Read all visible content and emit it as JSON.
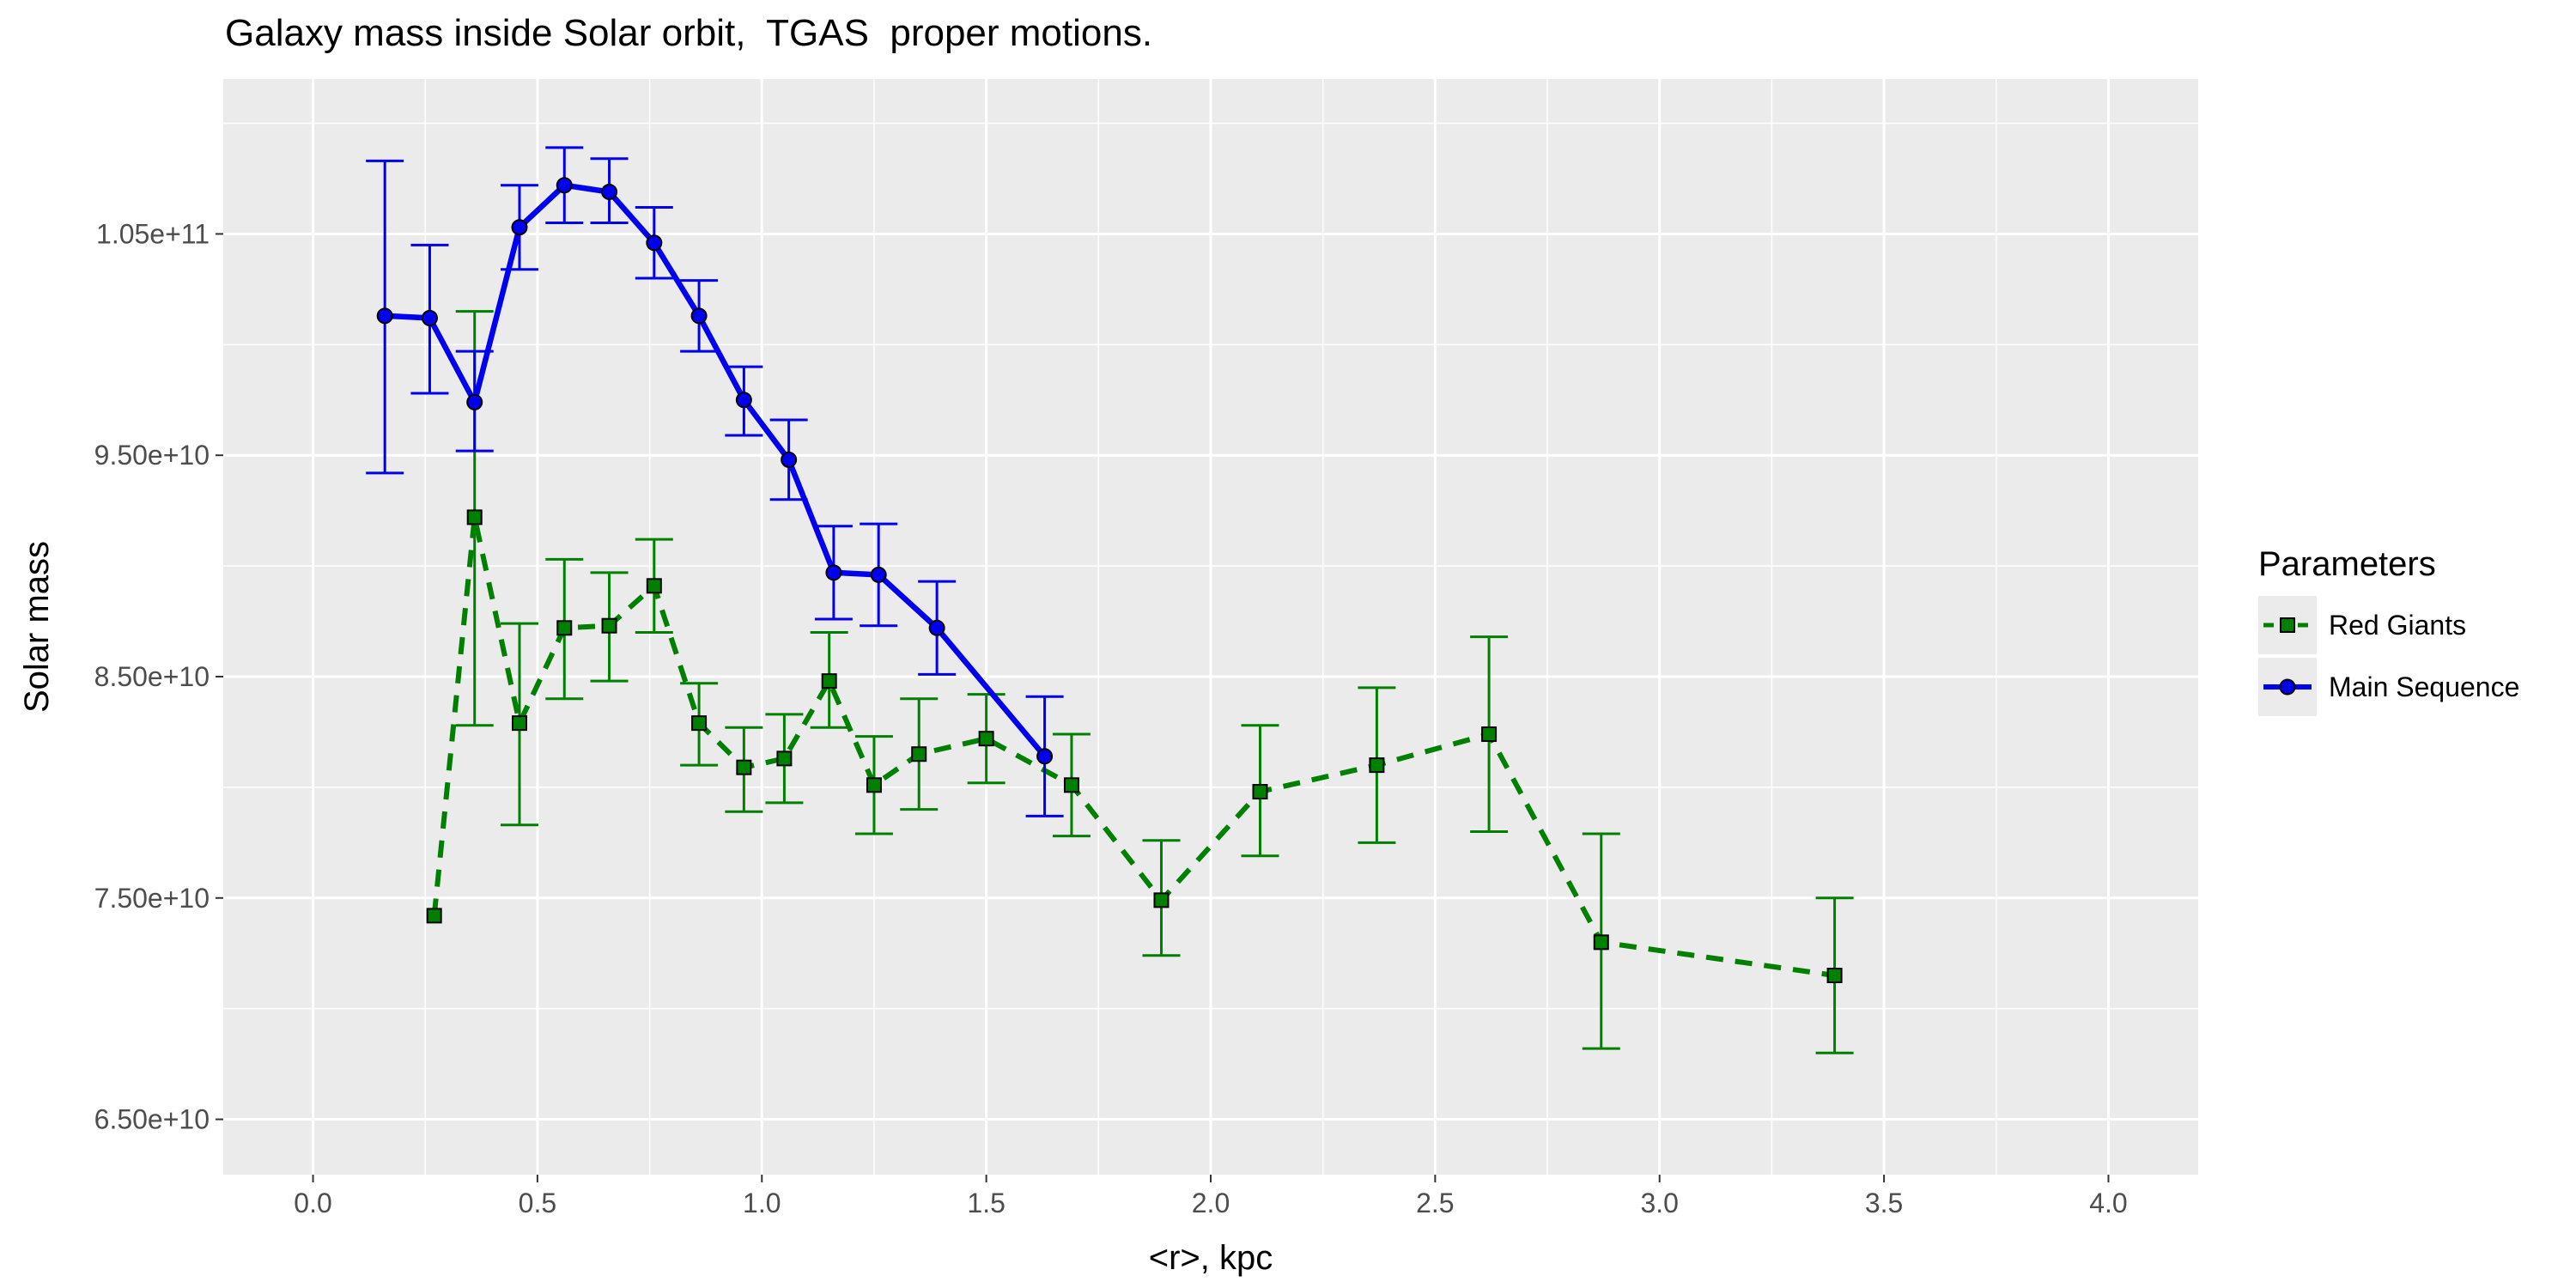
{
  "chart_data": {
    "type": "line",
    "title": "Galaxy mass inside Solar orbit,  TGAS  proper motions.",
    "xlabel": "<r>, kpc",
    "ylabel": "Solar mass",
    "xlim": [
      -0.2,
      4.2
    ],
    "ylim": [
      62500000000.0,
      112000000000.0
    ],
    "x_ticks": [
      {
        "value": 0.0,
        "label": "0.0"
      },
      {
        "value": 0.5,
        "label": "0.5"
      },
      {
        "value": 1.0,
        "label": "1.0"
      },
      {
        "value": 1.5,
        "label": "1.5"
      },
      {
        "value": 2.0,
        "label": "2.0"
      },
      {
        "value": 2.5,
        "label": "2.5"
      },
      {
        "value": 3.0,
        "label": "3.0"
      },
      {
        "value": 3.5,
        "label": "3.5"
      },
      {
        "value": 4.0,
        "label": "4.0"
      }
    ],
    "y_ticks": [
      {
        "value": 65000000000.0,
        "label": "6.50e+10"
      },
      {
        "value": 75000000000.0,
        "label": "7.50e+10"
      },
      {
        "value": 85000000000.0,
        "label": "8.50e+10"
      },
      {
        "value": 95000000000.0,
        "label": "9.50e+10"
      },
      {
        "value": 105000000000.0,
        "label": "1.05e+11"
      }
    ],
    "grid": true,
    "background": "#ebebeb",
    "legend": {
      "title": "Parameters",
      "position": "right"
    },
    "series": [
      {
        "name": "Red Giants",
        "color": "#008000",
        "line_style": "dashed",
        "marker": "square",
        "points": [
          {
            "x": 0.27,
            "y": 74200000000.0,
            "lo": null,
            "hi": null
          },
          {
            "x": 0.36,
            "y": 92200000000.0,
            "lo": 82800000000.0,
            "hi": 101500000000.0
          },
          {
            "x": 0.46,
            "y": 82900000000.0,
            "lo": 78300000000.0,
            "hi": 87400000000.0
          },
          {
            "x": 0.56,
            "y": 87200000000.0,
            "lo": 84000000000.0,
            "hi": 90300000000.0
          },
          {
            "x": 0.66,
            "y": 87300000000.0,
            "lo": 84800000000.0,
            "hi": 89700000000.0
          },
          {
            "x": 0.76,
            "y": 89100000000.0,
            "lo": 87000000000.0,
            "hi": 91200000000.0
          },
          {
            "x": 0.86,
            "y": 82900000000.0,
            "lo": 81000000000.0,
            "hi": 84700000000.0
          },
          {
            "x": 0.96,
            "y": 80900000000.0,
            "lo": 78900000000.0,
            "hi": 82700000000.0
          },
          {
            "x": 1.05,
            "y": 81300000000.0,
            "lo": 79300000000.0,
            "hi": 83300000000.0
          },
          {
            "x": 1.15,
            "y": 84800000000.0,
            "lo": 82700000000.0,
            "hi": 87000000000.0
          },
          {
            "x": 1.25,
            "y": 80100000000.0,
            "lo": 77900000000.0,
            "hi": 82300000000.0
          },
          {
            "x": 1.35,
            "y": 81500000000.0,
            "lo": 79000000000.0,
            "hi": 84000000000.0
          },
          {
            "x": 1.5,
            "y": 82200000000.0,
            "lo": 80200000000.0,
            "hi": 84200000000.0
          },
          {
            "x": 1.69,
            "y": 80100000000.0,
            "lo": 77800000000.0,
            "hi": 82400000000.0
          },
          {
            "x": 1.89,
            "y": 74900000000.0,
            "lo": 72400000000.0,
            "hi": 77600000000.0
          },
          {
            "x": 2.11,
            "y": 79800000000.0,
            "lo": 76900000000.0,
            "hi": 82800000000.0
          },
          {
            "x": 2.37,
            "y": 81000000000.0,
            "lo": 77500000000.0,
            "hi": 84500000000.0
          },
          {
            "x": 2.62,
            "y": 82400000000.0,
            "lo": 78000000000.0,
            "hi": 86800000000.0
          },
          {
            "x": 2.87,
            "y": 73000000000.0,
            "lo": 68200000000.0,
            "hi": 77900000000.0
          },
          {
            "x": 3.39,
            "y": 71500000000.0,
            "lo": 68000000000.0,
            "hi": 75000000000.0
          }
        ]
      },
      {
        "name": "Main Sequence",
        "color": "#0000ee",
        "line_style": "solid",
        "marker": "circle",
        "points": [
          {
            "x": 0.16,
            "y": 101300000000.0,
            "lo": 94200000000.0,
            "hi": 108300000000.0
          },
          {
            "x": 0.26,
            "y": 101200000000.0,
            "lo": 97800000000.0,
            "hi": 104500000000.0
          },
          {
            "x": 0.36,
            "y": 97400000000.0,
            "lo": 95200000000.0,
            "hi": 99700000000.0
          },
          {
            "x": 0.46,
            "y": 105300000000.0,
            "lo": 103400000000.0,
            "hi": 107200000000.0
          },
          {
            "x": 0.56,
            "y": 107200000000.0,
            "lo": 105500000000.0,
            "hi": 108900000000.0
          },
          {
            "x": 0.66,
            "y": 106900000000.0,
            "lo": 105500000000.0,
            "hi": 108400000000.0
          },
          {
            "x": 0.76,
            "y": 104600000000.0,
            "lo": 103000000000.0,
            "hi": 106200000000.0
          },
          {
            "x": 0.86,
            "y": 101300000000.0,
            "lo": 99700000000.0,
            "hi": 102900000000.0
          },
          {
            "x": 0.96,
            "y": 97500000000.0,
            "lo": 95900000000.0,
            "hi": 99000000000.0
          },
          {
            "x": 1.06,
            "y": 94800000000.0,
            "lo": 93000000000.0,
            "hi": 96600000000.0
          },
          {
            "x": 1.16,
            "y": 89700000000.0,
            "lo": 87600000000.0,
            "hi": 91800000000.0
          },
          {
            "x": 1.26,
            "y": 89600000000.0,
            "lo": 87300000000.0,
            "hi": 91900000000.0
          },
          {
            "x": 1.39,
            "y": 87200000000.0,
            "lo": 85100000000.0,
            "hi": 89300000000.0
          },
          {
            "x": 1.63,
            "y": 81400000000.0,
            "lo": 78700000000.0,
            "hi": 84100000000.0
          }
        ]
      }
    ]
  }
}
